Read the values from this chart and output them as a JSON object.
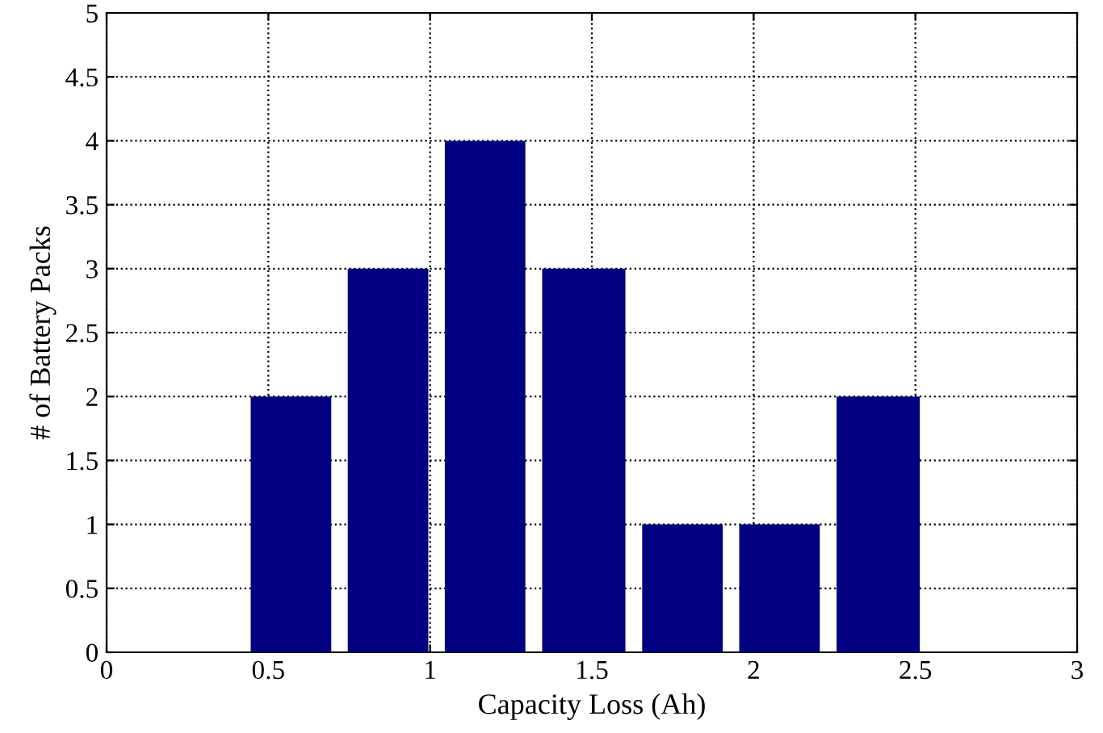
{
  "chart_data": {
    "type": "histogram",
    "xlabel": "Capacity Loss (Ah)",
    "ylabel": "# of Battery Packs",
    "bins": [
      0.42,
      0.72,
      1.02,
      1.32,
      1.63,
      1.93,
      2.23,
      2.54
    ],
    "values": [
      2,
      3,
      4,
      3,
      1,
      1,
      2
    ],
    "color": "#000080",
    "xlim": [
      0,
      3
    ],
    "xticks": [
      0,
      0.5,
      1,
      1.5,
      2,
      2.5,
      3
    ],
    "ylim": [
      0,
      5
    ],
    "yticks": [
      0,
      0.5,
      1,
      1.5,
      2,
      2.5,
      3,
      3.5,
      4,
      4.5,
      5
    ],
    "grid": true
  }
}
